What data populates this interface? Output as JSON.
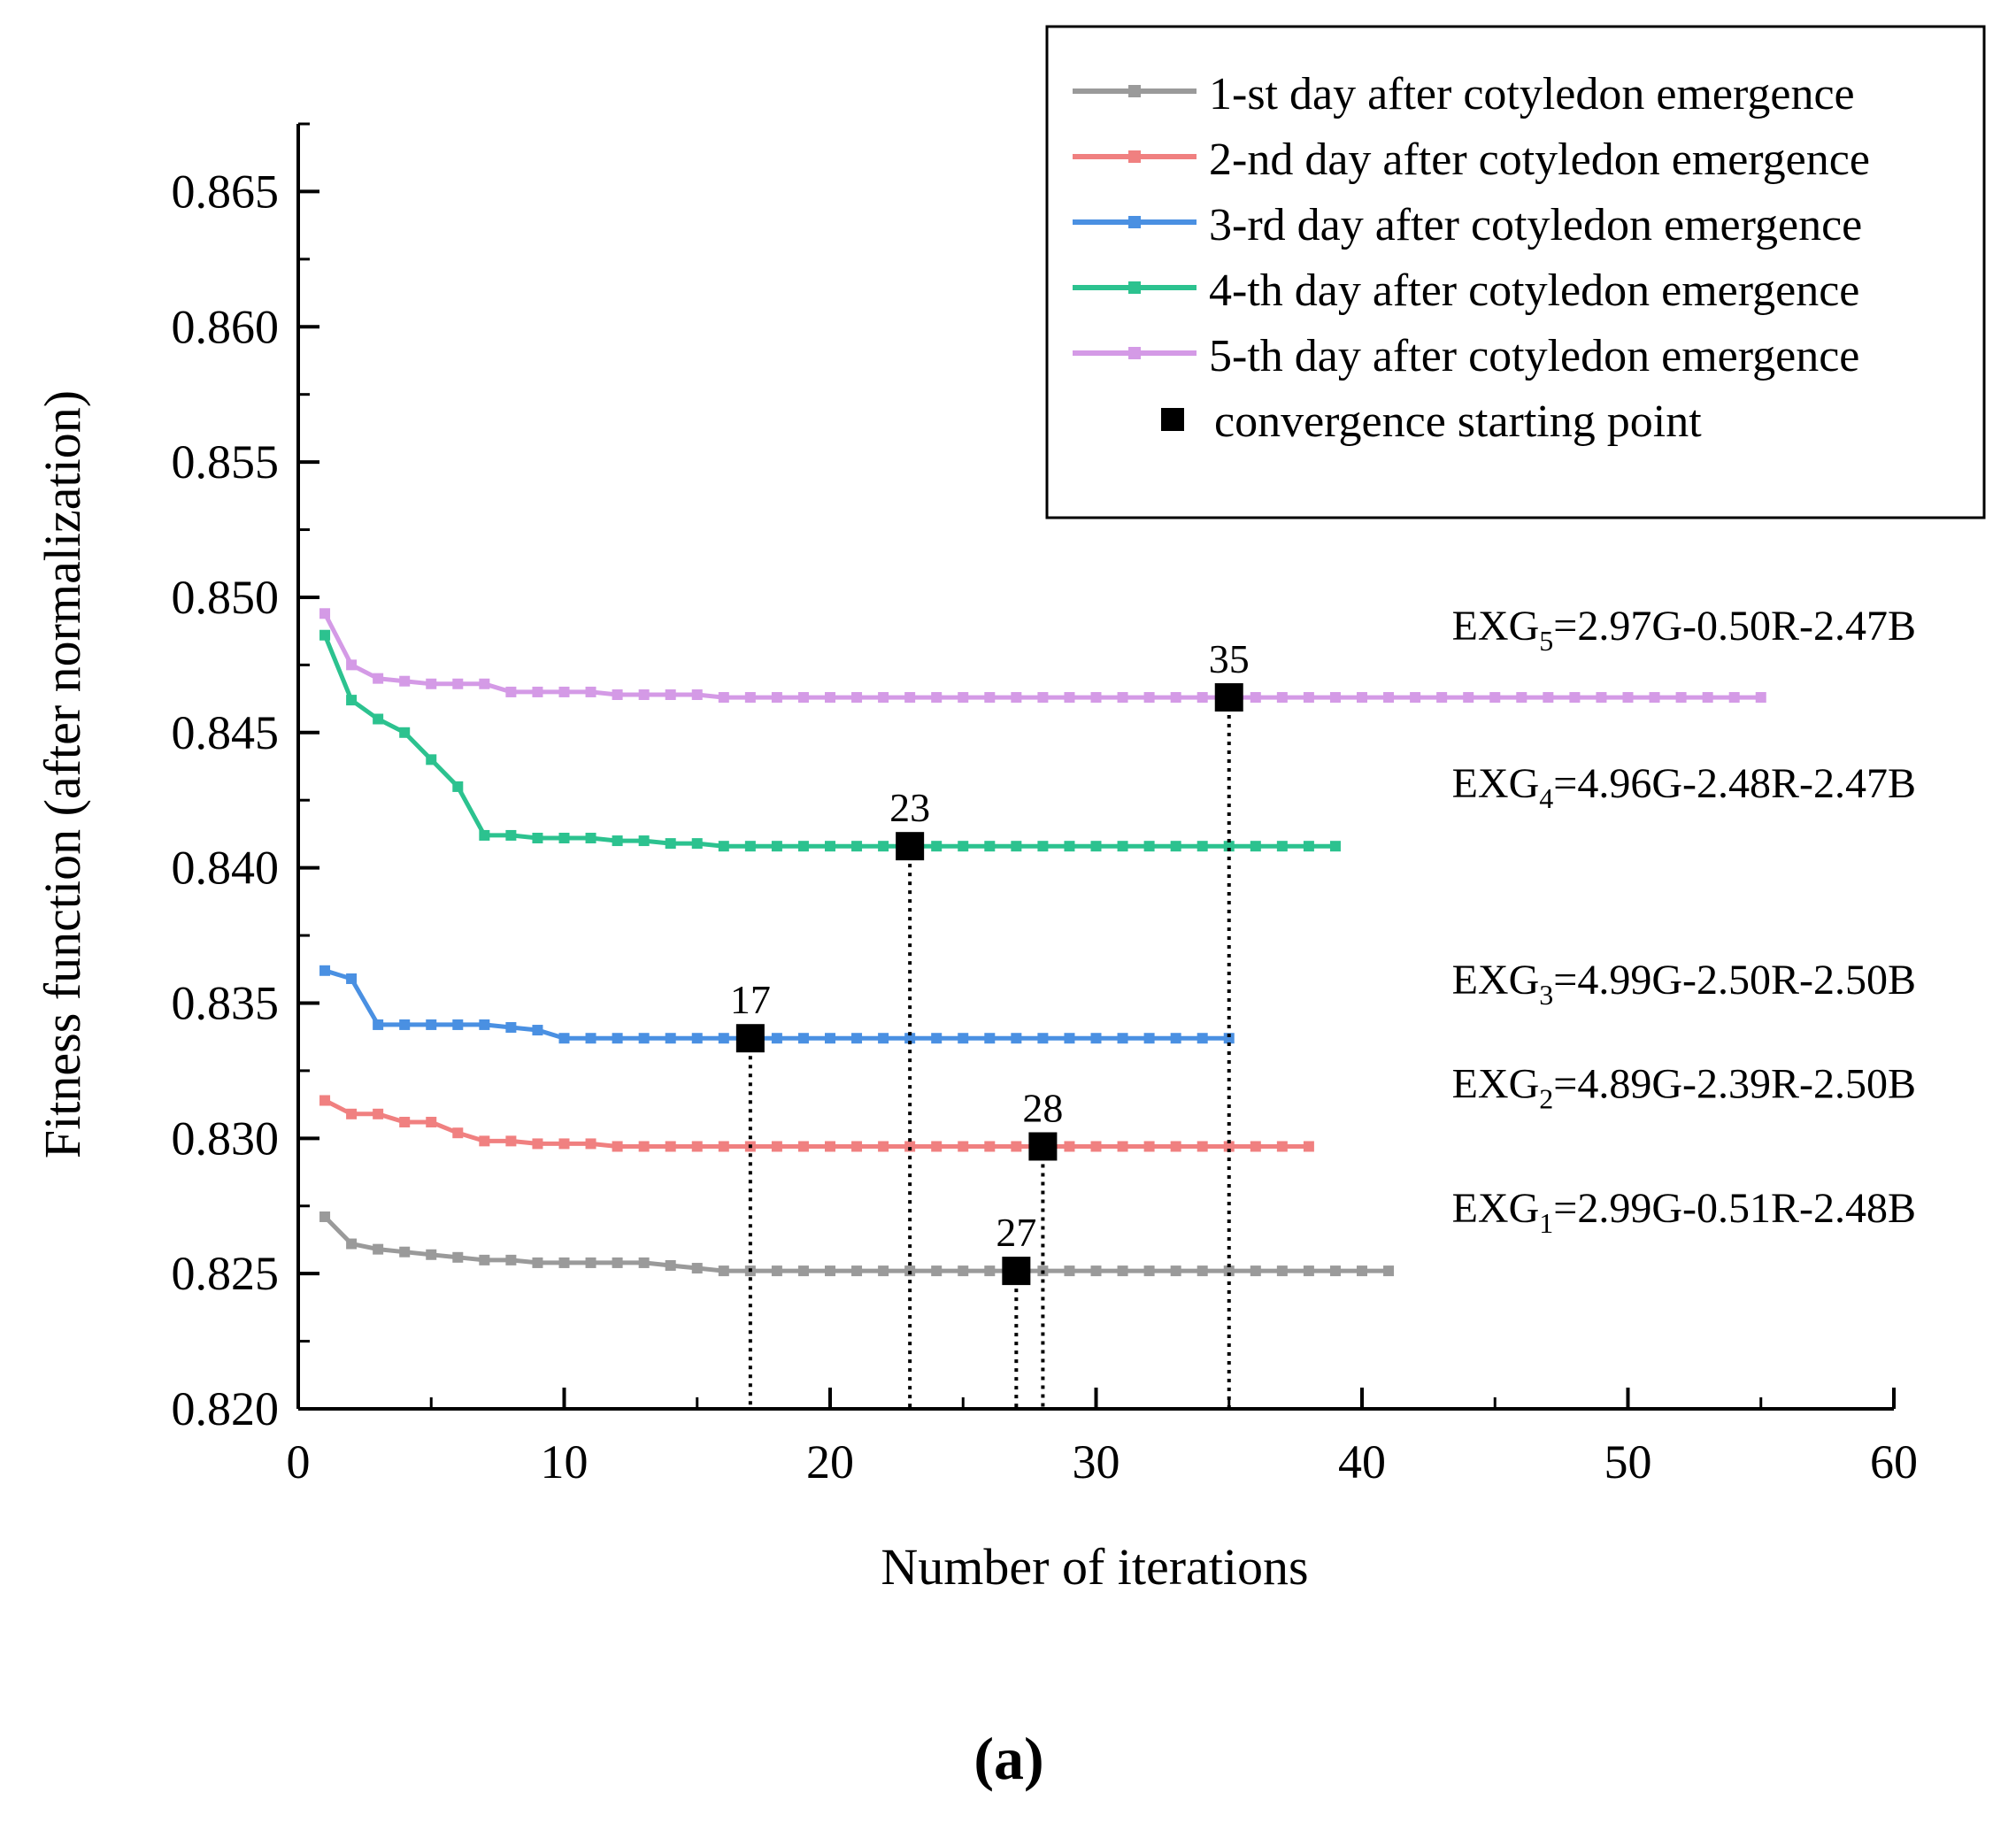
{
  "chart_data": {
    "type": "line",
    "xlabel": "Number of iterations",
    "ylabel": "Fitness function (after normalization)",
    "xlim": [
      0,
      60
    ],
    "ylim": [
      0.82,
      0.8675
    ],
    "x_ticks": [
      0,
      10,
      20,
      30,
      40,
      50,
      60
    ],
    "x_tick_labels": [
      "0",
      "10",
      "20",
      "30",
      "40",
      "50",
      "60"
    ],
    "y_ticks": [
      0.82,
      0.825,
      0.83,
      0.835,
      0.84,
      0.845,
      0.85,
      0.855,
      0.86,
      0.865
    ],
    "y_tick_labels": [
      "0.820",
      "0.825",
      "0.830",
      "0.835",
      "0.840",
      "0.845",
      "0.850",
      "0.855",
      "0.860",
      "0.865"
    ],
    "grid": false,
    "legend_position": "top-right",
    "series": [
      {
        "name": "1-st day after cotyledon emergence",
        "color": "#9a9a9a",
        "x": [
          1,
          2,
          3,
          4,
          5,
          6,
          7,
          8,
          9,
          10,
          11,
          12,
          13,
          14,
          15,
          16,
          17,
          18,
          19,
          20,
          21,
          22,
          23,
          24,
          25,
          26,
          27,
          28,
          29,
          30,
          31,
          32,
          33,
          34,
          35,
          36,
          37,
          38,
          39,
          40,
          41
        ],
        "y": [
          0.8271,
          0.8261,
          0.8259,
          0.8258,
          0.8257,
          0.8256,
          0.8255,
          0.8255,
          0.8254,
          0.8254,
          0.8254,
          0.8254,
          0.8254,
          0.8253,
          0.8252,
          0.8251,
          0.8251,
          0.8251,
          0.8251,
          0.8251,
          0.8251,
          0.8251,
          0.8251,
          0.8251,
          0.8251,
          0.8251,
          0.8251,
          0.8251,
          0.8251,
          0.8251,
          0.8251,
          0.8251,
          0.8251,
          0.8251,
          0.8251,
          0.8251,
          0.8251,
          0.8251,
          0.8251,
          0.8251,
          0.8251
        ],
        "convergence": {
          "x": 27,
          "y": 0.8251,
          "label": "27"
        },
        "equation": {
          "prefix": "EXG",
          "sub": "1",
          "rest": "=2.99G-0.51R-2.48B"
        }
      },
      {
        "name": "2-nd day after cotyledon emergence",
        "color": "#f08080",
        "x": [
          1,
          2,
          3,
          4,
          5,
          6,
          7,
          8,
          9,
          10,
          11,
          12,
          13,
          14,
          15,
          16,
          17,
          18,
          19,
          20,
          21,
          22,
          23,
          24,
          25,
          26,
          27,
          28,
          29,
          30,
          31,
          32,
          33,
          34,
          35,
          36,
          37,
          38
        ],
        "y": [
          0.8314,
          0.8309,
          0.8309,
          0.8306,
          0.8306,
          0.8302,
          0.8299,
          0.8299,
          0.8298,
          0.8298,
          0.8298,
          0.8297,
          0.8297,
          0.8297,
          0.8297,
          0.8297,
          0.8297,
          0.8297,
          0.8297,
          0.8297,
          0.8297,
          0.8297,
          0.8297,
          0.8297,
          0.8297,
          0.8297,
          0.8297,
          0.8297,
          0.8297,
          0.8297,
          0.8297,
          0.8297,
          0.8297,
          0.8297,
          0.8297,
          0.8297,
          0.8297,
          0.8297
        ],
        "convergence": {
          "x": 28,
          "y": 0.8297,
          "label": "28"
        },
        "equation": {
          "prefix": "EXG",
          "sub": "2",
          "rest": "=4.89G-2.39R-2.50B"
        }
      },
      {
        "name": "3-rd day after cotyledon emergence",
        "color": "#4a90e2",
        "x": [
          1,
          2,
          3,
          4,
          5,
          6,
          7,
          8,
          9,
          10,
          11,
          12,
          13,
          14,
          15,
          16,
          17,
          18,
          19,
          20,
          21,
          22,
          23,
          24,
          25,
          26,
          27,
          28,
          29,
          30,
          31,
          32,
          33,
          34,
          35
        ],
        "y": [
          0.8362,
          0.8359,
          0.8342,
          0.8342,
          0.8342,
          0.8342,
          0.8342,
          0.8341,
          0.834,
          0.8337,
          0.8337,
          0.8337,
          0.8337,
          0.8337,
          0.8337,
          0.8337,
          0.8337,
          0.8337,
          0.8337,
          0.8337,
          0.8337,
          0.8337,
          0.8337,
          0.8337,
          0.8337,
          0.8337,
          0.8337,
          0.8337,
          0.8337,
          0.8337,
          0.8337,
          0.8337,
          0.8337,
          0.8337,
          0.8337
        ],
        "convergence": {
          "x": 17,
          "y": 0.8337,
          "label": "17"
        },
        "equation": {
          "prefix": "EXG",
          "sub": "3",
          "rest": "=4.99G-2.50R-2.50B"
        }
      },
      {
        "name": "4-th day after cotyledon emergence",
        "color": "#2cc28f",
        "x": [
          1,
          2,
          3,
          4,
          5,
          6,
          7,
          8,
          9,
          10,
          11,
          12,
          13,
          14,
          15,
          16,
          17,
          18,
          19,
          20,
          21,
          22,
          23,
          24,
          25,
          26,
          27,
          28,
          29,
          30,
          31,
          32,
          33,
          34,
          35,
          36,
          37,
          38,
          39
        ],
        "y": [
          0.8486,
          0.8462,
          0.8455,
          0.845,
          0.844,
          0.843,
          0.8412,
          0.8412,
          0.8411,
          0.8411,
          0.8411,
          0.841,
          0.841,
          0.8409,
          0.8409,
          0.8408,
          0.8408,
          0.8408,
          0.8408,
          0.8408,
          0.8408,
          0.8408,
          0.8408,
          0.8408,
          0.8408,
          0.8408,
          0.8408,
          0.8408,
          0.8408,
          0.8408,
          0.8408,
          0.8408,
          0.8408,
          0.8408,
          0.8408,
          0.8408,
          0.8408,
          0.8408,
          0.8408
        ],
        "convergence": {
          "x": 23,
          "y": 0.8408,
          "label": "23"
        },
        "equation": {
          "prefix": "EXG",
          "sub": "4",
          "rest": "=4.96G-2.48R-2.47B"
        }
      },
      {
        "name": "5-th day after cotyledon emergence",
        "color": "#d49ae6",
        "x": [
          1,
          2,
          3,
          4,
          5,
          6,
          7,
          8,
          9,
          10,
          11,
          12,
          13,
          14,
          15,
          16,
          17,
          18,
          19,
          20,
          21,
          22,
          23,
          24,
          25,
          26,
          27,
          28,
          29,
          30,
          31,
          32,
          33,
          34,
          35,
          36,
          37,
          38,
          39,
          40,
          41,
          42,
          43,
          44,
          45,
          46,
          47,
          48,
          49,
          50,
          51,
          52,
          53,
          54,
          55
        ],
        "y": [
          0.8494,
          0.8475,
          0.847,
          0.8469,
          0.8468,
          0.8468,
          0.8468,
          0.8465,
          0.8465,
          0.8465,
          0.8465,
          0.8464,
          0.8464,
          0.8464,
          0.8464,
          0.8463,
          0.8463,
          0.8463,
          0.8463,
          0.8463,
          0.8463,
          0.8463,
          0.8463,
          0.8463,
          0.8463,
          0.8463,
          0.8463,
          0.8463,
          0.8463,
          0.8463,
          0.8463,
          0.8463,
          0.8463,
          0.8463,
          0.8463,
          0.8463,
          0.8463,
          0.8463,
          0.8463,
          0.8463,
          0.8463,
          0.8463,
          0.8463,
          0.8463,
          0.8463,
          0.8463,
          0.8463,
          0.8463,
          0.8463,
          0.8463,
          0.8463,
          0.8463,
          0.8463,
          0.8463,
          0.8463
        ],
        "convergence": {
          "x": 35,
          "y": 0.8463,
          "label": "35"
        },
        "equation": {
          "prefix": "EXG",
          "sub": "5",
          "rest": "=2.97G-0.50R-2.47B"
        }
      }
    ],
    "convergence_legend_label": "convergence starting point",
    "panel_label": "(a)"
  }
}
